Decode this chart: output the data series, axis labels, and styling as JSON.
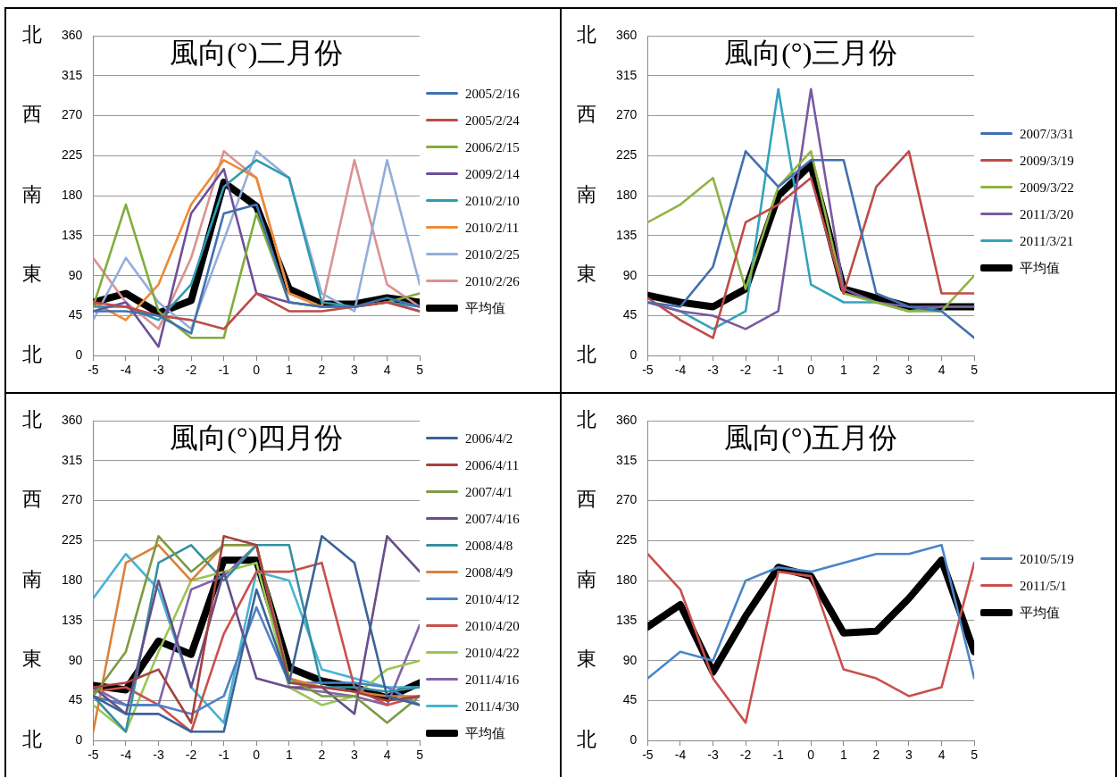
{
  "chart_data": [
    {
      "type": "line",
      "title": "風向(°)二月份",
      "x": [
        -5,
        -4,
        -3,
        -2,
        -1,
        0,
        1,
        2,
        3,
        4,
        5
      ],
      "xlim": [
        -5,
        5
      ],
      "xticks": [
        -5,
        -4,
        -3,
        -2,
        -1,
        0,
        1,
        2,
        3,
        4,
        5
      ],
      "ylim": [
        0,
        360
      ],
      "yticks": [
        0,
        45,
        90,
        135,
        180,
        225,
        270,
        315,
        360
      ],
      "y2_categories": [
        "北",
        "西",
        "南",
        "東",
        "北"
      ],
      "grid": "y",
      "legend": "right",
      "marker": "none",
      "line_style": "solid",
      "series": [
        {
          "name": "2005/2/16",
          "color": "#4170b0",
          "values": [
            50,
            50,
            45,
            25,
            160,
            170,
            60,
            55,
            55,
            65,
            55
          ]
        },
        {
          "name": "2005/2/24",
          "color": "#be4b48",
          "values": [
            60,
            55,
            45,
            40,
            30,
            70,
            50,
            50,
            55,
            60,
            50
          ]
        },
        {
          "name": "2006/2/15",
          "color": "#80ad3c",
          "values": [
            55,
            170,
            50,
            20,
            20,
            160,
            60,
            55,
            55,
            60,
            70
          ]
        },
        {
          "name": "2009/2/14",
          "color": "#6e4f9a",
          "values": [
            50,
            60,
            10,
            160,
            210,
            70,
            60,
            55,
            55,
            60,
            50
          ]
        },
        {
          "name": "2010/2/10",
          "color": "#2f9bb0",
          "values": [
            55,
            55,
            40,
            80,
            190,
            220,
            200,
            60,
            55,
            60,
            55
          ]
        },
        {
          "name": "2010/2/11",
          "color": "#ee8a35",
          "values": [
            60,
            40,
            80,
            170,
            220,
            200,
            70,
            55,
            55,
            null,
            null
          ]
        },
        {
          "name": "2010/2/25",
          "color": "#94add9",
          "values": [
            40,
            110,
            60,
            30,
            130,
            230,
            200,
            70,
            50,
            220,
            80
          ]
        },
        {
          "name": "2010/2/26",
          "color": "#da9390",
          "values": [
            110,
            60,
            30,
            110,
            230,
            200,
            70,
            55,
            220,
            80,
            55
          ]
        },
        {
          "name": "平均值",
          "color": "#000000",
          "values": [
            60,
            70,
            48,
            62,
            195,
            168,
            75,
            58,
            58,
            65,
            60
          ]
        }
      ]
    },
    {
      "type": "line",
      "title": "風向(°)三月份",
      "x": [
        -5,
        -4,
        -3,
        -2,
        -1,
        0,
        1,
        2,
        3,
        4,
        5
      ],
      "xlim": [
        -5,
        5
      ],
      "xticks": [
        -5,
        -4,
        -3,
        -2,
        -1,
        0,
        1,
        2,
        3,
        4,
        5
      ],
      "ylim": [
        0,
        360
      ],
      "yticks": [
        0,
        45,
        90,
        135,
        180,
        225,
        270,
        315,
        360
      ],
      "y2_categories": [
        "北",
        "西",
        "南",
        "東",
        "北"
      ],
      "grid": "y",
      "legend": "right",
      "marker": "none",
      "line_style": "solid",
      "series": [
        {
          "name": "2007/3/31",
          "color": "#4170b0",
          "values": [
            60,
            55,
            100,
            230,
            190,
            220,
            220,
            70,
            55,
            50,
            20
          ]
        },
        {
          "name": "2009/3/19",
          "color": "#be4b48",
          "values": [
            65,
            40,
            20,
            150,
            170,
            200,
            70,
            190,
            230,
            70,
            70
          ]
        },
        {
          "name": "2009/3/22",
          "color": "#8fb443",
          "values": [
            150,
            170,
            200,
            75,
            190,
            230,
            70,
            60,
            50,
            50,
            90
          ]
        },
        {
          "name": "2011/3/20",
          "color": "#7a5aa0",
          "values": [
            60,
            50,
            45,
            30,
            50,
            300,
            75,
            60,
            55,
            55,
            55
          ]
        },
        {
          "name": "2011/3/21",
          "color": "#34a3bd",
          "values": [
            60,
            50,
            30,
            50,
            300,
            80,
            60,
            60,
            50,
            55,
            55
          ]
        },
        {
          "name": "平均值",
          "color": "#000000",
          "values": [
            68,
            60,
            55,
            75,
            180,
            215,
            75,
            65,
            55,
            55,
            55
          ]
        }
      ]
    },
    {
      "type": "line",
      "title": "風向(°)四月份",
      "x": [
        -5,
        -4,
        -3,
        -2,
        -1,
        0,
        1,
        2,
        3,
        4,
        5
      ],
      "xlim": [
        -5,
        5
      ],
      "xticks": [
        -5,
        -4,
        -3,
        -2,
        -1,
        0,
        1,
        2,
        3,
        4,
        5
      ],
      "ylim": [
        0,
        360
      ],
      "yticks": [
        0,
        45,
        90,
        135,
        180,
        225,
        270,
        315,
        360
      ],
      "y2_categories": [
        "北",
        "西",
        "南",
        "東",
        "北"
      ],
      "grid": "y",
      "legend": "right",
      "marker": "none",
      "line_style": "solid",
      "series": [
        {
          "name": "2006/4/2",
          "color": "#3a6498",
          "values": [
            50,
            30,
            30,
            10,
            10,
            170,
            65,
            230,
            200,
            50,
            40
          ]
        },
        {
          "name": "2006/4/11",
          "color": "#a5403d",
          "values": [
            60,
            65,
            80,
            20,
            230,
            220,
            65,
            60,
            55,
            45,
            50
          ]
        },
        {
          "name": "2007/4/1",
          "color": "#7c9a43",
          "values": [
            50,
            100,
            230,
            190,
            220,
            220,
            70,
            50,
            50,
            20,
            50
          ]
        },
        {
          "name": "2007/4/16",
          "color": "#654e89",
          "values": [
            60,
            30,
            180,
            60,
            190,
            70,
            60,
            60,
            30,
            230,
            190
          ]
        },
        {
          "name": "2008/4/8",
          "color": "#35909f",
          "values": [
            50,
            10,
            200,
            220,
            180,
            220,
            220,
            60,
            60,
            55,
            60
          ]
        },
        {
          "name": "2008/4/9",
          "color": "#d9813c",
          "values": [
            10,
            200,
            220,
            180,
            220,
            220,
            70,
            60,
            55,
            50,
            50
          ]
        },
        {
          "name": "2010/4/12",
          "color": "#4f81c7",
          "values": [
            50,
            40,
            40,
            30,
            50,
            150,
            65,
            65,
            65,
            60,
            40
          ]
        },
        {
          "name": "2010/4/20",
          "color": "#c9504c",
          "values": [
            55,
            60,
            40,
            10,
            120,
            190,
            190,
            200,
            60,
            40,
            50
          ]
        },
        {
          "name": "2010/4/22",
          "color": "#9bc554",
          "values": [
            40,
            10,
            100,
            180,
            190,
            200,
            60,
            40,
            50,
            80,
            90
          ]
        },
        {
          "name": "2011/4/16",
          "color": "#8264a8",
          "values": [
            60,
            40,
            40,
            170,
            185,
            220,
            60,
            55,
            50,
            40,
            130
          ]
        },
        {
          "name": "2011/4/30",
          "color": "#47b4d2",
          "values": [
            160,
            210,
            170,
            60,
            20,
            190,
            180,
            80,
            70,
            60,
            60
          ]
        },
        {
          "name": "平均值",
          "color": "#000000",
          "values": [
            62,
            57,
            112,
            97,
            203,
            203,
            82,
            67,
            60,
            48,
            65
          ]
        }
      ]
    },
    {
      "type": "line",
      "title": "風向(°)五月份",
      "x": [
        -5,
        -4,
        -3,
        -2,
        -1,
        0,
        1,
        2,
        3,
        4,
        5
      ],
      "xlim": [
        -5,
        5
      ],
      "xticks": [
        -5,
        -4,
        -3,
        -2,
        -1,
        0,
        1,
        2,
        3,
        4,
        5
      ],
      "ylim": [
        0,
        360
      ],
      "yticks": [
        0,
        45,
        90,
        135,
        180,
        225,
        270,
        315,
        360
      ],
      "y2_categories": [
        "北",
        "西",
        "南",
        "東",
        "北"
      ],
      "grid": "y",
      "legend": "right",
      "marker": "none",
      "line_style": "solid",
      "series": [
        {
          "name": "2010/5/19",
          "color": "#4a85c8",
          "values": [
            70,
            100,
            90,
            180,
            195,
            190,
            200,
            210,
            210,
            220,
            70
          ]
        },
        {
          "name": "2011/5/1",
          "color": "#c9504c",
          "values": [
            210,
            170,
            70,
            20,
            190,
            185,
            80,
            70,
            50,
            60,
            200
          ]
        },
        {
          "name": "平均值",
          "color": "#000000",
          "values": [
            128,
            153,
            77,
            140,
            195,
            185,
            121,
            123,
            160,
            203,
            100
          ]
        }
      ]
    }
  ]
}
